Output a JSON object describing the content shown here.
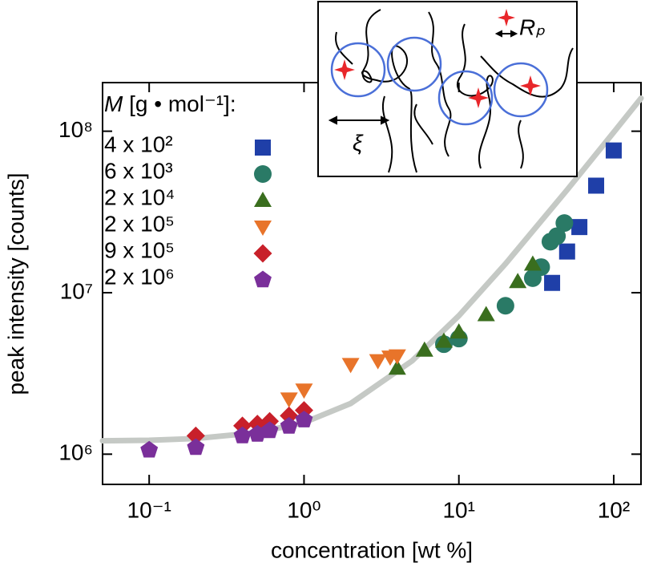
{
  "chart_data": {
    "type": "scatter",
    "xlabel": "concentration [wt %]",
    "ylabel": "peak intensity [counts]",
    "xscale": "log",
    "yscale": "log",
    "xlim": [
      0.05,
      150
    ],
    "ylim": [
      650000,
      200000000
    ],
    "xticks": [
      {
        "value": 0.1,
        "label": "10⁻¹"
      },
      {
        "value": 1,
        "label": "10⁰"
      },
      {
        "value": 10,
        "label": "10¹"
      },
      {
        "value": 100,
        "label": "10²"
      }
    ],
    "yticks": [
      {
        "value": 1000000,
        "label": "10⁶"
      },
      {
        "value": 10000000,
        "label": "10⁷"
      },
      {
        "value": 100000000,
        "label": "10⁸"
      }
    ],
    "legend": "upper left",
    "legend_title": "M [g • mol⁻¹]:",
    "series": [
      {
        "name": "4 x 10²",
        "color": "#1f3fa8",
        "marker": "square",
        "x": [
          100,
          77,
          60,
          50,
          40
        ],
        "values": [
          76000000,
          46000000,
          25500000,
          18000000,
          11500000
        ]
      },
      {
        "name": "6 x 10³",
        "color": "#2a7a66",
        "marker": "circle",
        "x": [
          48,
          43,
          39,
          34,
          30,
          20,
          10,
          8
        ],
        "values": [
          27000000,
          22400000,
          20700000,
          14400000,
          12300000,
          8300000,
          5200000,
          4800000
        ]
      },
      {
        "name": "2 x 10⁴",
        "color": "#3a6e1e",
        "marker": "triangle-up",
        "x": [
          30,
          24,
          15,
          10,
          8,
          6,
          4
        ],
        "values": [
          15000000,
          11700000,
          7300000,
          5700000,
          5000000,
          4400000,
          3400000
        ]
      },
      {
        "name": "2 x 10⁵",
        "color": "#e8742a",
        "marker": "triangle-down",
        "x": [
          4,
          3.6,
          3,
          2,
          1,
          0.8
        ],
        "values": [
          4070000,
          4000000,
          3800000,
          3600000,
          2500000,
          2200000
        ]
      },
      {
        "name": "9 x 10⁵",
        "color": "#c8202a",
        "marker": "diamond",
        "x": [
          1,
          0.8,
          0.6,
          0.5,
          0.4,
          0.2
        ],
        "values": [
          1870000,
          1730000,
          1600000,
          1540000,
          1500000,
          1300000
        ]
      },
      {
        "name": "2 x 10⁶",
        "color": "#7a2f9a",
        "marker": "pentagon",
        "x": [
          1,
          0.8,
          0.6,
          0.5,
          0.4,
          0.2,
          0.1
        ],
        "values": [
          1630000,
          1490000,
          1400000,
          1330000,
          1300000,
          1100000,
          1060000
        ]
      }
    ],
    "fit": {
      "color": "#c5c9c5",
      "x": [
        0.05,
        0.1,
        0.2,
        0.5,
        1,
        2,
        5,
        10,
        20,
        50,
        100,
        150
      ],
      "values": [
        1210000,
        1220000,
        1250000,
        1360000,
        1570000,
        2060000,
        3790000,
        7200000,
        15100000,
        43300000,
        98500000,
        160000000
      ]
    },
    "annotations": [
      "Rₚ",
      "ξ"
    ]
  }
}
